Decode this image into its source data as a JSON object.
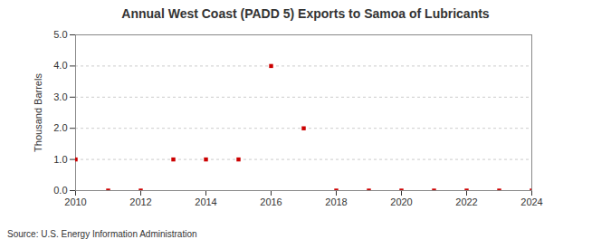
{
  "chart_data": {
    "type": "scatter",
    "title": "Annual West Coast (PADD 5) Exports to Samoa of Lubricants",
    "x": [
      2010,
      2011,
      2012,
      2013,
      2014,
      2015,
      2016,
      2017,
      2018,
      2019,
      2020,
      2021,
      2022,
      2023,
      2024
    ],
    "values": [
      1,
      0,
      0,
      1,
      1,
      1,
      4,
      2,
      0,
      0,
      0,
      0,
      0,
      0,
      0
    ],
    "y_label": "Thousand Barrels",
    "source": "Source: U.S. Energy Information Administration",
    "color": "#cc0000",
    "marker": "square",
    "xlim": [
      2010,
      2024
    ],
    "xticks": [
      2010,
      2012,
      2014,
      2016,
      2018,
      2020,
      2022,
      2024
    ],
    "ylim": [
      0,
      5
    ],
    "yticks": [
      {
        "value": 0,
        "label": "0.0"
      },
      {
        "value": 1,
        "label": "1.0"
      },
      {
        "value": 2,
        "label": "2.0"
      },
      {
        "value": 3,
        "label": "3.0"
      },
      {
        "value": 4,
        "label": "4.0"
      },
      {
        "value": 5,
        "label": "5.0"
      }
    ],
    "grid": true
  }
}
